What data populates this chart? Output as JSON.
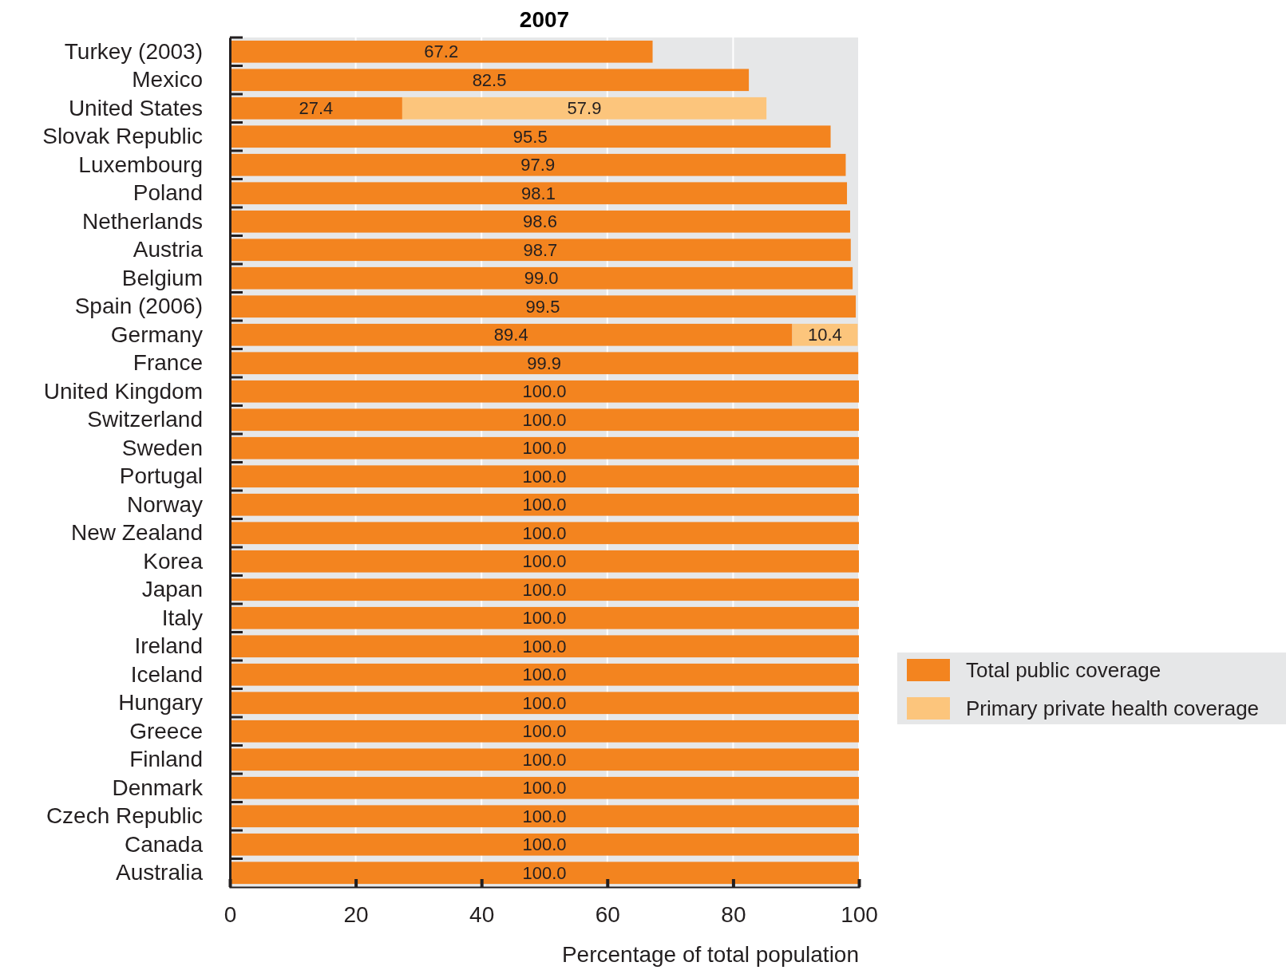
{
  "chart_data": {
    "type": "bar",
    "title": "2007",
    "orientation": "horizontal",
    "stacked": true,
    "xlabel": "Percentage of total population",
    "categories": [
      "Turkey (2003)",
      "Mexico",
      "United States",
      "Slovak Republic",
      "Luxembourg",
      "Poland",
      "Netherlands",
      "Austria",
      "Belgium",
      "Spain (2006)",
      "Germany",
      "France",
      "United Kingdom",
      "Switzerland",
      "Sweden",
      "Portugal",
      "Norway",
      "New Zealand",
      "Korea",
      "Japan",
      "Italy",
      "Ireland",
      "Iceland",
      "Hungary",
      "Greece",
      "Finland",
      "Denmark",
      "Czech Republic",
      "Canada",
      "Australia"
    ],
    "series": [
      {
        "name": "Total public coverage",
        "color": "#f3841f",
        "values": [
          67.2,
          82.5,
          27.4,
          95.5,
          97.9,
          98.1,
          98.6,
          98.7,
          99.0,
          99.5,
          89.4,
          99.9,
          100,
          100,
          100,
          100,
          100,
          100,
          100,
          100,
          100,
          100,
          100,
          100,
          100,
          100,
          100,
          100,
          100,
          100
        ],
        "value_labels": [
          "67.2",
          "82.5",
          "27.4",
          "95.5",
          "97.9",
          "98.1",
          "98.6",
          "98.7",
          "99.0",
          "99.5",
          "89.4",
          "99.9",
          "100.0",
          "100.0",
          "100.0",
          "100.0",
          "100.0",
          "100.0",
          "100.0",
          "100.0",
          "100.0",
          "100.0",
          "100.0",
          "100.0",
          "100.0",
          "100.0",
          "100.0",
          "100.0",
          "100.0",
          "100.0"
        ]
      },
      {
        "name": "Primary private health coverage",
        "color": "#fcc57c",
        "values": [
          null,
          null,
          57.9,
          null,
          null,
          null,
          null,
          null,
          null,
          null,
          10.4,
          null,
          null,
          null,
          null,
          null,
          null,
          null,
          null,
          null,
          null,
          null,
          null,
          null,
          null,
          null,
          null,
          null,
          null,
          null
        ],
        "value_labels": [
          null,
          null,
          "57.9",
          null,
          null,
          null,
          null,
          null,
          null,
          null,
          "10.4",
          null,
          null,
          null,
          null,
          null,
          null,
          null,
          null,
          null,
          null,
          null,
          null,
          null,
          null,
          null,
          null,
          null,
          null,
          null
        ]
      }
    ],
    "xlim": [
      0,
      100
    ],
    "xticks": [
      0,
      20,
      40,
      60,
      80,
      100
    ],
    "grid": "x",
    "legend": "right"
  }
}
